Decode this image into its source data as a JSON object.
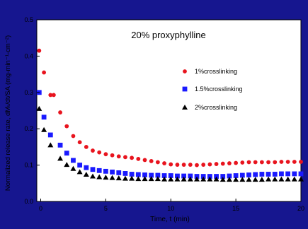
{
  "colors": {
    "background": "#16168f",
    "plot_area": "#ffffff",
    "axis_text": "#000000"
  },
  "chart_data": {
    "type": "scatter",
    "title": "20% proxyphylline",
    "xlabel": "Time, t (min)",
    "ylabel": "Normalized release rate, dMₜ/dt/SA (mg-min⁻¹-cm⁻²)",
    "xlim": [
      -0.3,
      20
    ],
    "ylim": [
      0,
      0.5
    ],
    "x_ticks": [
      0,
      5,
      10,
      15,
      20
    ],
    "y_ticks": [
      0.0,
      0.1,
      0.2,
      0.3,
      0.4,
      0.5
    ],
    "x_tick_labels": [
      "0",
      "5",
      "10",
      "15",
      "20"
    ],
    "y_tick_labels": [
      "0.0",
      "0.1",
      "0.2",
      "0.3",
      "0.4",
      "0.5"
    ],
    "legend_position": "right",
    "grid": false,
    "series": [
      {
        "name": "1%crosslinking",
        "marker": "circle",
        "color": "#e8141e",
        "x": [
          -0.12,
          0.25,
          0.75,
          1.0,
          1.5,
          2.0,
          2.5,
          3.0,
          3.5,
          4.0,
          4.5,
          5.0,
          5.5,
          6.0,
          6.5,
          7.0,
          7.5,
          8.0,
          8.5,
          9.0,
          9.5,
          10.0,
          10.5,
          11.0,
          11.5,
          12.0,
          12.5,
          13.0,
          13.5,
          14.0,
          14.5,
          15.0,
          15.5,
          16.0,
          16.5,
          17.0,
          17.5,
          18.0,
          18.5,
          19.0,
          19.5,
          20.0
        ],
        "y": [
          0.415,
          0.355,
          0.293,
          0.293,
          0.245,
          0.207,
          0.18,
          0.163,
          0.15,
          0.14,
          0.135,
          0.13,
          0.127,
          0.124,
          0.122,
          0.12,
          0.117,
          0.114,
          0.111,
          0.108,
          0.105,
          0.102,
          0.101,
          0.101,
          0.101,
          0.1,
          0.101,
          0.102,
          0.103,
          0.104,
          0.105,
          0.106,
          0.107,
          0.108,
          0.108,
          0.108,
          0.108,
          0.108,
          0.109,
          0.109,
          0.109,
          0.109
        ]
      },
      {
        "name": "1.5%crosslinking",
        "marker": "square",
        "color": "#1a1aff",
        "x": [
          -0.12,
          0.25,
          0.75,
          1.5,
          2.0,
          2.5,
          3.0,
          3.5,
          4.0,
          4.5,
          5.0,
          5.5,
          6.0,
          6.5,
          7.0,
          7.5,
          8.0,
          8.5,
          9.0,
          9.5,
          10.0,
          10.5,
          11.0,
          11.5,
          12.0,
          12.5,
          13.0,
          13.5,
          14.0,
          14.5,
          15.0,
          15.5,
          16.0,
          16.5,
          17.0,
          17.5,
          18.0,
          18.5,
          19.0,
          19.5,
          20.0
        ],
        "y": [
          0.3,
          0.232,
          0.183,
          0.155,
          0.133,
          0.113,
          0.1,
          0.093,
          0.088,
          0.085,
          0.083,
          0.081,
          0.079,
          0.077,
          0.075,
          0.074,
          0.073,
          0.072,
          0.072,
          0.071,
          0.071,
          0.07,
          0.07,
          0.07,
          0.069,
          0.069,
          0.069,
          0.069,
          0.069,
          0.07,
          0.071,
          0.072,
          0.073,
          0.074,
          0.075,
          0.075,
          0.075,
          0.076,
          0.076,
          0.076,
          0.076
        ]
      },
      {
        "name": "2%crosslinking",
        "marker": "triangle",
        "color": "#000000",
        "x": [
          -0.12,
          0.25,
          0.75,
          1.5,
          2.0,
          2.5,
          3.0,
          3.5,
          4.0,
          4.5,
          5.0,
          5.5,
          6.0,
          6.5,
          7.0,
          7.5,
          8.0,
          8.5,
          9.0,
          9.5,
          10.0,
          10.5,
          11.0,
          11.5,
          12.0,
          12.5,
          13.0,
          13.5,
          14.0,
          14.5,
          15.0,
          15.5,
          16.0,
          16.5,
          17.0,
          17.5,
          18.0,
          18.5,
          19.0,
          19.5,
          20.0
        ],
        "y": [
          0.255,
          0.197,
          0.155,
          0.118,
          0.101,
          0.09,
          0.081,
          0.074,
          0.069,
          0.067,
          0.066,
          0.065,
          0.064,
          0.063,
          0.063,
          0.062,
          0.062,
          0.062,
          0.062,
          0.061,
          0.061,
          0.061,
          0.061,
          0.061,
          0.061,
          0.061,
          0.061,
          0.061,
          0.06,
          0.06,
          0.06,
          0.06,
          0.06,
          0.06,
          0.06,
          0.061,
          0.061,
          0.061,
          0.061,
          0.061,
          0.061
        ]
      }
    ]
  }
}
